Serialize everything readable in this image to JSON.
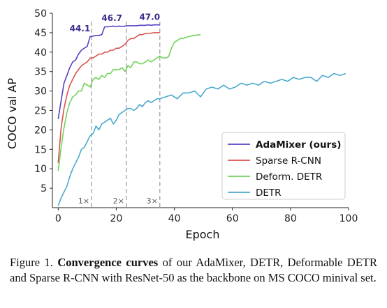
{
  "chart_data": {
    "type": "line",
    "xlabel": "Epoch",
    "ylabel": "COCO val AP",
    "xlim": [
      -2,
      100
    ],
    "ylim": [
      0,
      50
    ],
    "xticks": [
      0,
      20,
      40,
      60,
      80,
      100
    ],
    "yticks": [
      5,
      10,
      15,
      20,
      25,
      30,
      35,
      40,
      45,
      50
    ],
    "grid": false,
    "legend_position": "bottom-right",
    "schedule_lines": [
      {
        "x": 11.5,
        "label": "1×"
      },
      {
        "x": 23.5,
        "label": "2×"
      },
      {
        "x": 35,
        "label": "3×"
      }
    ],
    "annotations": [
      {
        "text": "44.1",
        "x": 7.5,
        "y": 45.3
      },
      {
        "text": "46.7",
        "x": 18.5,
        "y": 48.0
      },
      {
        "text": "47.0",
        "x": 31.5,
        "y": 48.3
      }
    ],
    "series": [
      {
        "name": "AdaMixer (ours)",
        "color": "#5b3fc4",
        "bold": true,
        "x": [
          0,
          1,
          2,
          3,
          4,
          5,
          6,
          7,
          8,
          9,
          10,
          11,
          12,
          13,
          14,
          15,
          16,
          17,
          18,
          19,
          20,
          21,
          22,
          23,
          24,
          25,
          26,
          27,
          28,
          29,
          30,
          31,
          32,
          33,
          34,
          35
        ],
        "y": [
          22.8,
          27.5,
          32.0,
          34.0,
          36.0,
          37.5,
          38.0,
          39.5,
          40.5,
          41.0,
          41.5,
          44.0,
          44.1,
          44.3,
          44.3,
          44.5,
          46.5,
          46.5,
          46.6,
          46.7,
          46.6,
          46.7,
          46.6,
          46.7,
          46.8,
          46.8,
          46.8,
          46.8,
          46.9,
          46.9,
          46.9,
          47.0,
          46.9,
          47.0,
          47.0,
          47.0
        ]
      },
      {
        "name": "Sparse R-CNN",
        "color": "#d9534f",
        "bold": false,
        "x": [
          0,
          1,
          2,
          3,
          4,
          5,
          6,
          7,
          8,
          9,
          10,
          11,
          12,
          13,
          14,
          15,
          16,
          17,
          18,
          19,
          20,
          21,
          22,
          23,
          24,
          25,
          26,
          27,
          28,
          29,
          30,
          31,
          32,
          33,
          34,
          35
        ],
        "y": [
          11.5,
          20.5,
          25.5,
          29.0,
          31.5,
          33.0,
          34.5,
          35.5,
          36.5,
          37.0,
          37.5,
          38.5,
          38.5,
          39.0,
          39.5,
          39.5,
          40.0,
          40.0,
          40.5,
          40.5,
          41.0,
          41.0,
          41.5,
          42.0,
          43.0,
          43.5,
          43.5,
          44.0,
          44.5,
          44.5,
          44.8,
          44.8,
          44.9,
          45.0,
          45.0,
          45.0
        ]
      },
      {
        "name": "Deform. DETR",
        "color": "#6fd35a",
        "bold": false,
        "x": [
          0,
          1,
          2,
          3,
          4,
          5,
          6,
          7,
          8,
          9,
          10,
          11,
          12,
          13,
          14,
          15,
          16,
          17,
          18,
          19,
          20,
          21,
          22,
          23,
          24,
          25,
          26,
          27,
          28,
          29,
          30,
          31,
          32,
          33,
          34,
          35,
          36,
          37,
          38,
          39,
          40,
          41,
          42,
          43,
          44,
          45,
          46,
          47,
          48,
          49
        ],
        "y": [
          9.5,
          15.5,
          20.5,
          24.5,
          27.0,
          28.5,
          29.0,
          30.0,
          30.0,
          32.0,
          31.5,
          31.0,
          33.0,
          33.5,
          33.0,
          34.0,
          33.5,
          34.5,
          34.5,
          35.5,
          35.5,
          35.5,
          36.0,
          35.0,
          36.5,
          36.0,
          37.5,
          37.5,
          37.0,
          37.0,
          37.5,
          38.0,
          37.5,
          38.0,
          38.5,
          39.0,
          38.5,
          38.5,
          38.8,
          41.0,
          42.5,
          43.0,
          43.5,
          43.5,
          43.8,
          44.0,
          44.2,
          44.3,
          44.4,
          44.5
        ]
      },
      {
        "name": "DETR",
        "color": "#4aa9cf",
        "bold": false,
        "x": [
          0,
          1,
          2,
          3,
          4,
          5,
          6,
          7,
          8,
          9,
          10,
          11,
          12,
          13,
          14,
          15,
          16,
          17,
          18,
          19,
          20,
          21,
          22,
          23,
          24,
          25,
          26,
          27,
          28,
          29,
          30,
          31,
          32,
          33,
          34,
          35,
          37,
          39,
          41,
          43,
          45,
          47,
          49,
          51,
          53,
          55,
          57,
          59,
          61,
          63,
          65,
          67,
          69,
          71,
          73,
          75,
          77,
          79,
          81,
          83,
          85,
          87,
          89,
          91,
          93,
          95,
          97,
          99
        ],
        "y": [
          0.5,
          2.5,
          4.0,
          5.5,
          8.0,
          10.0,
          11.5,
          13.0,
          15.0,
          15.5,
          17.0,
          18.5,
          19.0,
          21.0,
          20.0,
          21.5,
          22.0,
          22.5,
          23.0,
          21.5,
          22.5,
          24.0,
          24.5,
          25.0,
          25.5,
          25.5,
          25.0,
          25.5,
          26.5,
          26.0,
          27.0,
          27.5,
          27.0,
          27.5,
          28.0,
          28.0,
          28.5,
          29.0,
          28.0,
          29.5,
          29.5,
          30.0,
          28.5,
          30.5,
          31.0,
          30.5,
          31.5,
          30.5,
          31.0,
          32.0,
          31.5,
          32.0,
          31.5,
          32.5,
          32.0,
          32.5,
          33.0,
          32.5,
          33.5,
          33.0,
          33.5,
          33.5,
          32.5,
          34.0,
          33.5,
          34.5,
          34.0,
          34.5
        ]
      }
    ]
  },
  "caption": {
    "figure_label": "Figure 1.",
    "bold_text": "Convergence curves",
    "rest_text": " of our AdaMixer, DETR, Deformable DETR and Sparse R-CNN with ResNet-50 as the backbone on MS COCO minival set."
  }
}
